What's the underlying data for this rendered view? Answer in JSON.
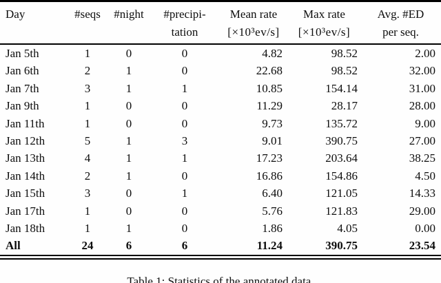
{
  "colors": {
    "background": "#fefefe",
    "text": "#0d0d0d",
    "rule": "#000000"
  },
  "table": {
    "columns": [
      {
        "label": "Day",
        "label2": ""
      },
      {
        "label": "#seqs",
        "label2": ""
      },
      {
        "label": "#night",
        "label2": ""
      },
      {
        "label": "#precipi-",
        "label2": "tation"
      },
      {
        "label": "Mean rate",
        "label2": "[×10³ev/s]"
      },
      {
        "label": "Max rate",
        "label2": "[×10³ev/s]"
      },
      {
        "label": "Avg. #ED",
        "label2": "per seq."
      }
    ],
    "rows": [
      {
        "day": "Jan 5th",
        "seqs": "1",
        "night": "0",
        "precipitation": "0",
        "mean_rate": "4.82",
        "max_rate": "98.52",
        "avg_ed": "2.00",
        "bold": false
      },
      {
        "day": "Jan 6th",
        "seqs": "2",
        "night": "1",
        "precipitation": "0",
        "mean_rate": "22.68",
        "max_rate": "98.52",
        "avg_ed": "32.00",
        "bold": false
      },
      {
        "day": "Jan 7th",
        "seqs": "3",
        "night": "1",
        "precipitation": "1",
        "mean_rate": "10.85",
        "max_rate": "154.14",
        "avg_ed": "31.00",
        "bold": false
      },
      {
        "day": "Jan 9th",
        "seqs": "1",
        "night": "0",
        "precipitation": "0",
        "mean_rate": "11.29",
        "max_rate": "28.17",
        "avg_ed": "28.00",
        "bold": false
      },
      {
        "day": "Jan 11th",
        "seqs": "1",
        "night": "0",
        "precipitation": "0",
        "mean_rate": "9.73",
        "max_rate": "135.72",
        "avg_ed": "9.00",
        "bold": false
      },
      {
        "day": "Jan 12th",
        "seqs": "5",
        "night": "1",
        "precipitation": "3",
        "mean_rate": "9.01",
        "max_rate": "390.75",
        "avg_ed": "27.00",
        "bold": false
      },
      {
        "day": "Jan 13th",
        "seqs": "4",
        "night": "1",
        "precipitation": "1",
        "mean_rate": "17.23",
        "max_rate": "203.64",
        "avg_ed": "38.25",
        "bold": false
      },
      {
        "day": "Jan 14th",
        "seqs": "2",
        "night": "1",
        "precipitation": "0",
        "mean_rate": "16.86",
        "max_rate": "154.86",
        "avg_ed": "4.50",
        "bold": false
      },
      {
        "day": "Jan 15th",
        "seqs": "3",
        "night": "0",
        "precipitation": "1",
        "mean_rate": "6.40",
        "max_rate": "121.05",
        "avg_ed": "14.33",
        "bold": false
      },
      {
        "day": "Jan 17th",
        "seqs": "1",
        "night": "0",
        "precipitation": "0",
        "mean_rate": "5.76",
        "max_rate": "121.83",
        "avg_ed": "29.00",
        "bold": false
      },
      {
        "day": "Jan 18th",
        "seqs": "1",
        "night": "1",
        "precipitation": "0",
        "mean_rate": "1.86",
        "max_rate": "4.05",
        "avg_ed": "0.00",
        "bold": false
      },
      {
        "day": "All",
        "seqs": "24",
        "night": "6",
        "precipitation": "6",
        "mean_rate": "11.24",
        "max_rate": "390.75",
        "avg_ed": "23.54",
        "bold": true
      }
    ]
  },
  "caption": "Table 1: Statistics of the annotated data."
}
